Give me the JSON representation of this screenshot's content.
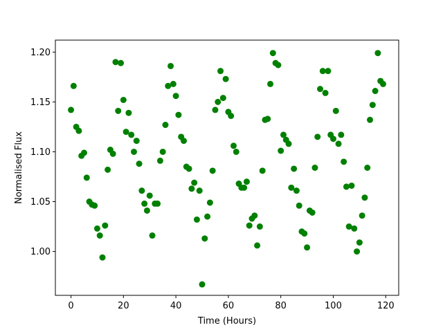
{
  "chart_data": {
    "type": "scatter",
    "title": "",
    "xlabel": "Time (Hours)",
    "ylabel": "Normalised Flux",
    "xlim": [
      -5.95,
      124.95
    ],
    "ylim": [
      0.956,
      1.212
    ],
    "xticks": [
      0,
      20,
      40,
      60,
      80,
      100,
      120
    ],
    "yticks": [
      1.0,
      1.05,
      1.1,
      1.15,
      1.2
    ],
    "xtick_labels": [
      "0",
      "20",
      "40",
      "60",
      "80",
      "100",
      "120"
    ],
    "ytick_labels": [
      "1.00",
      "1.05",
      "1.10",
      "1.15",
      "1.20"
    ],
    "grid": false,
    "legend": "none",
    "marker_color": "#008000",
    "series": [
      {
        "x": [
          0,
          1,
          2,
          3,
          4,
          5,
          6,
          7,
          8,
          9,
          10,
          11,
          12,
          13,
          14,
          15,
          16,
          17,
          18,
          19,
          20,
          21,
          22,
          23,
          24,
          25,
          26,
          27,
          28,
          29,
          30,
          31,
          32,
          33,
          34,
          35,
          36,
          37,
          38,
          39,
          40,
          41,
          42,
          43,
          44,
          45,
          46,
          47,
          48,
          49,
          50,
          51,
          52,
          53,
          54,
          55,
          56,
          57,
          58,
          59,
          60,
          61,
          62,
          63,
          64,
          65,
          66,
          67,
          68,
          69,
          70,
          71,
          72,
          73,
          74,
          75,
          76,
          77,
          78,
          79,
          80,
          81,
          82,
          83,
          84,
          85,
          86,
          87,
          88,
          89,
          90,
          91,
          92,
          93,
          94,
          95,
          96,
          97,
          98,
          99,
          100,
          101,
          102,
          103,
          104,
          105,
          106,
          107,
          108,
          109,
          110,
          111,
          112,
          113,
          114,
          115,
          116,
          117,
          118,
          119
        ],
        "y": [
          1.142,
          1.166,
          1.125,
          1.121,
          1.096,
          1.099,
          1.074,
          1.05,
          1.047,
          1.046,
          1.023,
          1.016,
          0.994,
          1.026,
          1.082,
          1.102,
          1.098,
          1.19,
          1.141,
          1.189,
          1.152,
          1.12,
          1.139,
          1.117,
          1.1,
          1.111,
          1.088,
          1.061,
          1.048,
          1.041,
          1.056,
          1.016,
          1.048,
          1.048,
          1.091,
          1.1,
          1.127,
          1.166,
          1.186,
          1.168,
          1.156,
          1.137,
          1.115,
          1.111,
          1.085,
          1.083,
          1.063,
          1.069,
          1.032,
          1.061,
          0.967,
          1.013,
          1.035,
          1.049,
          1.081,
          1.142,
          1.15,
          1.181,
          1.154,
          1.173,
          1.14,
          1.136,
          1.106,
          1.1,
          1.068,
          1.064,
          1.064,
          1.07,
          1.026,
          1.033,
          1.036,
          1.006,
          1.025,
          1.081,
          1.132,
          1.133,
          1.168,
          1.199,
          1.189,
          1.187,
          1.101,
          1.117,
          1.112,
          1.108,
          1.064,
          1.083,
          1.061,
          1.046,
          1.02,
          1.018,
          1.004,
          1.041,
          1.039,
          1.084,
          1.115,
          1.163,
          1.181,
          1.159,
          1.181,
          1.117,
          1.113,
          1.141,
          1.108,
          1.117,
          1.09,
          1.065,
          1.025,
          1.066,
          1.023,
          1.0,
          1.009,
          1.036,
          1.054,
          1.084,
          1.132,
          1.147,
          1.161,
          1.199,
          1.171,
          1.168
        ]
      }
    ]
  }
}
